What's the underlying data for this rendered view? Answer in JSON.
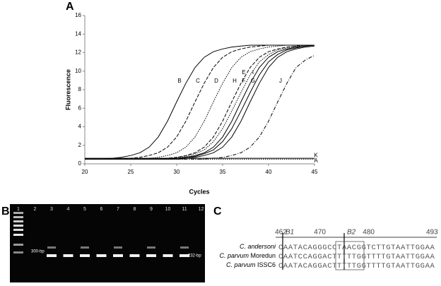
{
  "panels": {
    "a": "A",
    "b": "B",
    "c": "C"
  },
  "chart_data": {
    "type": "line",
    "x_label": "Cycles",
    "y_label": "Fluorescence",
    "x": [
      20,
      21,
      22,
      23,
      24,
      25,
      26,
      27,
      28,
      29,
      30,
      31,
      32,
      33,
      34,
      35,
      36,
      37,
      38,
      39,
      40,
      41,
      42,
      43,
      44,
      45
    ],
    "xlim": [
      20,
      45
    ],
    "xticks": [
      20,
      25,
      30,
      35,
      40,
      45
    ],
    "ylim": [
      0,
      16
    ],
    "yticks": [
      0,
      2,
      4,
      6,
      8,
      10,
      12,
      14,
      16
    ],
    "series": [
      {
        "name": "B",
        "color": "#000000",
        "dash": "solid",
        "values": [
          0.5,
          0.5,
          0.5,
          0.6,
          0.7,
          0.9,
          1.2,
          1.8,
          2.9,
          4.6,
          6.7,
          8.7,
          10.4,
          11.5,
          12.1,
          12.4,
          12.6,
          12.7,
          12.8,
          12.8,
          12.8,
          12.8,
          12.8,
          12.8,
          12.8,
          12.8
        ]
      },
      {
        "name": "C",
        "color": "#000000",
        "dash": "dashed",
        "values": [
          0.5,
          0.5,
          0.5,
          0.5,
          0.5,
          0.6,
          0.7,
          0.9,
          1.2,
          1.8,
          2.9,
          4.6,
          6.7,
          8.7,
          10.4,
          11.5,
          12.1,
          12.4,
          12.6,
          12.7,
          12.8,
          12.8,
          12.8,
          12.8,
          12.8,
          12.8
        ]
      },
      {
        "name": "D",
        "color": "#000000",
        "dash": "dotted",
        "values": [
          0.5,
          0.5,
          0.5,
          0.5,
          0.5,
          0.5,
          0.5,
          0.6,
          0.7,
          0.9,
          1.2,
          1.8,
          2.9,
          4.6,
          6.7,
          8.7,
          10.4,
          11.5,
          12.1,
          12.4,
          12.6,
          12.7,
          12.8,
          12.8,
          12.8,
          12.8
        ]
      },
      {
        "name": "H",
        "color": "#000000",
        "dash": "dashed",
        "values": [
          0.5,
          0.5,
          0.5,
          0.5,
          0.5,
          0.5,
          0.5,
          0.5,
          0.5,
          0.6,
          0.7,
          0.9,
          1.2,
          1.8,
          2.9,
          4.6,
          6.7,
          8.7,
          10.4,
          11.5,
          12.1,
          12.4,
          12.6,
          12.7,
          12.8,
          12.8
        ]
      },
      {
        "name": "E",
        "color": "#000000",
        "dash": "dotted",
        "values": [
          0.5,
          0.5,
          0.5,
          0.5,
          0.5,
          0.5,
          0.5,
          0.5,
          0.5,
          0.6,
          0.7,
          0.8,
          1.1,
          1.5,
          2.4,
          3.8,
          5.7,
          7.7,
          9.6,
          11.0,
          11.8,
          12.3,
          12.5,
          12.7,
          12.8,
          12.8
        ]
      },
      {
        "name": "F",
        "color": "#000000",
        "dash": "solid",
        "values": [
          0.5,
          0.5,
          0.5,
          0.5,
          0.5,
          0.5,
          0.5,
          0.5,
          0.5,
          0.5,
          0.6,
          0.7,
          0.9,
          1.2,
          1.8,
          2.9,
          4.6,
          6.7,
          8.7,
          10.4,
          11.5,
          12.1,
          12.4,
          12.6,
          12.7,
          12.8
        ]
      },
      {
        "name": "I",
        "color": "#000000",
        "dash": "solid",
        "values": [
          0.5,
          0.5,
          0.5,
          0.5,
          0.5,
          0.5,
          0.5,
          0.5,
          0.5,
          0.5,
          0.6,
          0.7,
          0.8,
          1.1,
          1.5,
          2.4,
          3.8,
          5.7,
          7.7,
          9.6,
          11.0,
          11.8,
          12.3,
          12.5,
          12.7,
          12.8
        ]
      },
      {
        "name": "G",
        "color": "#000000",
        "dash": "solid",
        "values": [
          0.5,
          0.5,
          0.5,
          0.5,
          0.5,
          0.5,
          0.5,
          0.5,
          0.5,
          0.5,
          0.5,
          0.6,
          0.7,
          0.9,
          1.2,
          1.8,
          2.9,
          4.6,
          6.7,
          8.7,
          10.4,
          11.5,
          12.1,
          12.4,
          12.6,
          12.7
        ]
      },
      {
        "name": "J",
        "color": "#000000",
        "dash": "dashdot",
        "values": [
          0.5,
          0.5,
          0.5,
          0.5,
          0.5,
          0.5,
          0.5,
          0.5,
          0.5,
          0.5,
          0.5,
          0.5,
          0.5,
          0.5,
          0.6,
          0.7,
          0.9,
          1.2,
          1.8,
          2.9,
          4.6,
          6.7,
          8.7,
          10.4,
          11.2,
          11.7
        ]
      },
      {
        "name": "A",
        "color": "#000000",
        "dash": "solid",
        "values": [
          0.6,
          0.6,
          0.6,
          0.6,
          0.6,
          0.6,
          0.6,
          0.6,
          0.6,
          0.6,
          0.6,
          0.6,
          0.6,
          0.6,
          0.6,
          0.6,
          0.6,
          0.6,
          0.6,
          0.6,
          0.6,
          0.6,
          0.6,
          0.6,
          0.6,
          0.6
        ]
      },
      {
        "name": "K",
        "color": "#000000",
        "dash": "dotted",
        "values": [
          0.5,
          0.5,
          0.5,
          0.5,
          0.5,
          0.5,
          0.5,
          0.5,
          0.5,
          0.5,
          0.5,
          0.5,
          0.5,
          0.5,
          0.5,
          0.5,
          0.5,
          0.5,
          0.5,
          0.5,
          0.5,
          0.5,
          0.5,
          0.5,
          0.5,
          0.5
        ]
      }
    ]
  },
  "gel": {
    "lanes": [
      "1",
      "2",
      "3",
      "4",
      "5",
      "6",
      "7",
      "8",
      "9",
      "10",
      "11",
      "12"
    ],
    "marker_label": "300-bp",
    "product_label": "232-bp"
  },
  "alignment": {
    "positions": [
      "462",
      "470",
      "480",
      "493"
    ],
    "boxes": [
      "B1",
      "B2"
    ],
    "rows": [
      {
        "species": "C. andersoni",
        "strain": "",
        "sequence": "CAATACAGGGCCTAACGGTCTTGTAATTGGAA"
      },
      {
        "species": "C. parvum",
        "strain": "Moredun",
        "sequence": "CAATCCAGGACTTTTTGGTTTTGTAATTGGAA"
      },
      {
        "species": "C. parvum",
        "strain": "ISSC6",
        "sequence": "CAATACAGGACTTTTTGGTTTTGTAATTGGAA"
      }
    ]
  }
}
